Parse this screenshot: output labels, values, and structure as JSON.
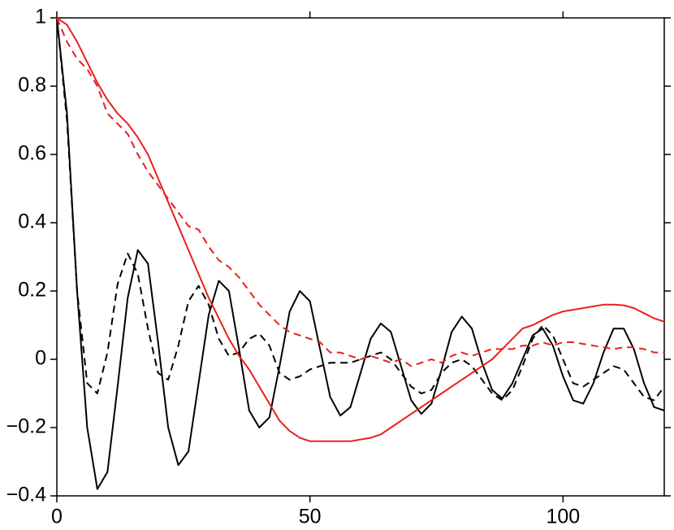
{
  "chart_data": {
    "type": "line",
    "x": [
      0,
      2,
      4,
      6,
      8,
      10,
      12,
      14,
      16,
      18,
      20,
      22,
      24,
      26,
      28,
      30,
      32,
      34,
      36,
      38,
      40,
      42,
      44,
      46,
      48,
      50,
      52,
      54,
      56,
      58,
      60,
      62,
      64,
      66,
      68,
      70,
      72,
      74,
      76,
      78,
      80,
      82,
      84,
      86,
      88,
      90,
      92,
      94,
      96,
      98,
      100,
      102,
      104,
      106,
      108,
      110,
      112,
      114,
      116,
      118,
      120
    ],
    "series": [
      {
        "color": "#000000",
        "dashed": false,
        "values": [
          1,
          0.72,
          0.2,
          -0.2,
          -0.38,
          -0.33,
          -0.08,
          0.18,
          0.32,
          0.28,
          0.05,
          -0.2,
          -0.31,
          -0.27,
          -0.07,
          0.13,
          0.23,
          0.2,
          0.03,
          -0.15,
          -0.2,
          -0.17,
          -0.02,
          0.14,
          0.2,
          0.17,
          0.03,
          -0.11,
          -0.165,
          -0.14,
          -0.04,
          0.06,
          0.105,
          0.08,
          -0.02,
          -0.12,
          -0.16,
          -0.13,
          -0.03,
          0.08,
          0.125,
          0.09,
          -0.01,
          -0.09,
          -0.115,
          -0.07,
          0,
          0.07,
          0.09,
          0.04,
          -0.05,
          -0.12,
          -0.13,
          -0.07,
          0.02,
          0.09,
          0.09,
          0.03,
          -0.07,
          -0.14,
          -0.15
        ]
      },
      {
        "color": "#000000",
        "dashed": true,
        "values": [
          1,
          0.7,
          0.2,
          -0.07,
          -0.1,
          0.02,
          0.22,
          0.31,
          0.25,
          0.09,
          -0.04,
          -0.06,
          0.04,
          0.17,
          0.215,
          0.16,
          0.06,
          0.01,
          0.02,
          0.06,
          0.075,
          0.04,
          -0.04,
          -0.06,
          -0.05,
          -0.03,
          -0.02,
          -0.01,
          -0.01,
          -0.01,
          0,
          0.01,
          0.02,
          0,
          -0.04,
          -0.08,
          -0.1,
          -0.09,
          -0.04,
          -0.01,
          0,
          -0.02,
          -0.06,
          -0.1,
          -0.12,
          -0.09,
          -0.02,
          0.06,
          0.1,
          0.07,
          0,
          -0.07,
          -0.08,
          -0.06,
          -0.04,
          -0.02,
          -0.03,
          -0.07,
          -0.11,
          -0.12,
          -0.08
        ]
      },
      {
        "color": "#e8201c",
        "dashed": false,
        "values": [
          1,
          0.98,
          0.93,
          0.87,
          0.81,
          0.76,
          0.72,
          0.69,
          0.65,
          0.6,
          0.53,
          0.46,
          0.39,
          0.32,
          0.25,
          0.18,
          0.12,
          0.06,
          0.01,
          -0.03,
          -0.08,
          -0.13,
          -0.18,
          -0.21,
          -0.23,
          -0.24,
          -0.24,
          -0.24,
          -0.24,
          -0.24,
          -0.235,
          -0.23,
          -0.22,
          -0.2,
          -0.18,
          -0.16,
          -0.14,
          -0.12,
          -0.1,
          -0.08,
          -0.06,
          -0.04,
          -0.02,
          0,
          0.03,
          0.06,
          0.09,
          0.1,
          0.115,
          0.13,
          0.14,
          0.145,
          0.15,
          0.155,
          0.16,
          0.16,
          0.158,
          0.15,
          0.135,
          0.12,
          0.11
        ]
      },
      {
        "color": "#e8201c",
        "dashed": true,
        "values": [
          1,
          0.93,
          0.88,
          0.85,
          0.8,
          0.72,
          0.69,
          0.66,
          0.6,
          0.55,
          0.51,
          0.47,
          0.43,
          0.39,
          0.38,
          0.33,
          0.29,
          0.27,
          0.24,
          0.2,
          0.16,
          0.13,
          0.1,
          0.08,
          0.07,
          0.06,
          0.05,
          0.02,
          0.02,
          0.01,
          0,
          0.01,
          0,
          -0.01,
          0,
          -0.02,
          -0.01,
          0,
          -0.01,
          0.01,
          0.02,
          0.01,
          0.02,
          0.03,
          0.03,
          0.03,
          0.04,
          0.04,
          0.05,
          0.04,
          0.05,
          0.05,
          0.045,
          0.04,
          0.035,
          0.03,
          0.035,
          0.035,
          0.03,
          0.02,
          0.02
        ]
      }
    ],
    "xlim": [
      0,
      120
    ],
    "xticks": [
      0,
      50,
      100
    ],
    "ylim": [
      -0.4,
      1
    ],
    "yticks": [
      {
        "value": -0.4,
        "label": "−0.4"
      },
      {
        "value": -0.2,
        "label": "−0.2"
      },
      0,
      0.2,
      0.4,
      0.6,
      0.8,
      1
    ],
    "grid": false
  }
}
